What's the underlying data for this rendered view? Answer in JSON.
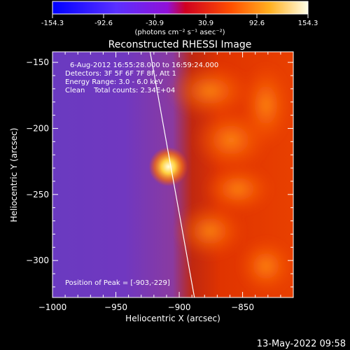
{
  "chart_data": {
    "type": "heatmap",
    "title": "Reconstructed RHESSI Image",
    "xlabel": "Heliocentric X (arcsec)",
    "ylabel": "Heliocentric Y (arcsec)",
    "xlim": [
      -1000,
      -810
    ],
    "ylim": [
      -328,
      -142
    ],
    "x_ticks": [
      -1000,
      -950,
      -900,
      -850
    ],
    "y_ticks": [
      -150,
      -200,
      -250,
      -300
    ],
    "colorbar": {
      "ticks": [
        "-154.3",
        "-92.6",
        "-30.9",
        "30.9",
        "92.6",
        "154.3"
      ],
      "range": [
        -154.3,
        154.3
      ],
      "units": "(photons cm⁻² s⁻¹ asec⁻²)",
      "colors": [
        "#0000ff",
        "#6a2cff",
        "#a010e0",
        "#d40040",
        "#ff5000",
        "#ffb020",
        "#ffffe0"
      ]
    },
    "annotations": {
      "time": "6-Aug-2012 16:55:28.000 to 16:59:24.000",
      "detectors": "Detectors: 3F 5F 6F 7F 8F, Att 1",
      "energy": "Energy Range: 3.0 - 6.0 keV",
      "clean": "Clean    Total counts: 2.34E+04",
      "peak": "Position of Peak = [-903,-229]"
    },
    "peak": [
      -903,
      -229
    ],
    "limb": [
      [
        -923,
        -142
      ],
      [
        -888,
        -328
      ]
    ]
  },
  "footer": {
    "date": "13-May-2022 09:58"
  }
}
